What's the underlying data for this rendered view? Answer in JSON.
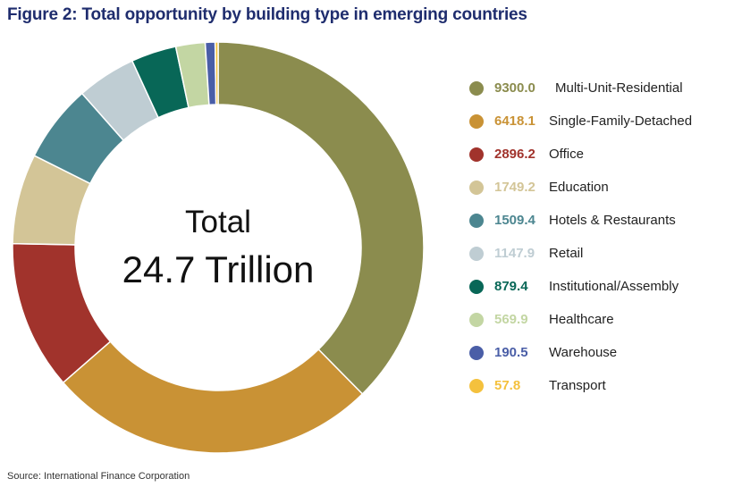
{
  "title": "Figure 2: Total opportunity by building type in emerging countries",
  "source": "Source: International Finance Corporation",
  "center": {
    "line1": "Total",
    "line2": "24.7 Trillion"
  },
  "chart_data": {
    "type": "pie",
    "donut": true,
    "title": "Figure 2: Total opportunity by building type in emerging countries",
    "categories": [
      "Multi-Unit-Residential",
      "Single-Family-Detached",
      "Office",
      "Education",
      "Hotels & Restaurants",
      "Retail",
      "Institutional/Assembly",
      "Healthcare",
      "Warehouse",
      "Transport"
    ],
    "values": [
      9300.0,
      6418.1,
      2896.2,
      1749.2,
      1509.4,
      1147.9,
      879.4,
      569.9,
      190.5,
      57.8
    ],
    "value_labels": [
      "9300.0",
      "6418.1",
      "2896.2",
      "1749.2",
      "1509.4",
      "1147.9",
      "879.4",
      "569.9",
      "190.5",
      "57.8"
    ],
    "colors": [
      "#8b8c4e",
      "#c99235",
      "#a1332c",
      "#d3c597",
      "#4c8690",
      "#bfcdd3",
      "#086757",
      "#c3d6a3",
      "#4a5ea7",
      "#f4c13d"
    ],
    "legend_position": "right"
  }
}
